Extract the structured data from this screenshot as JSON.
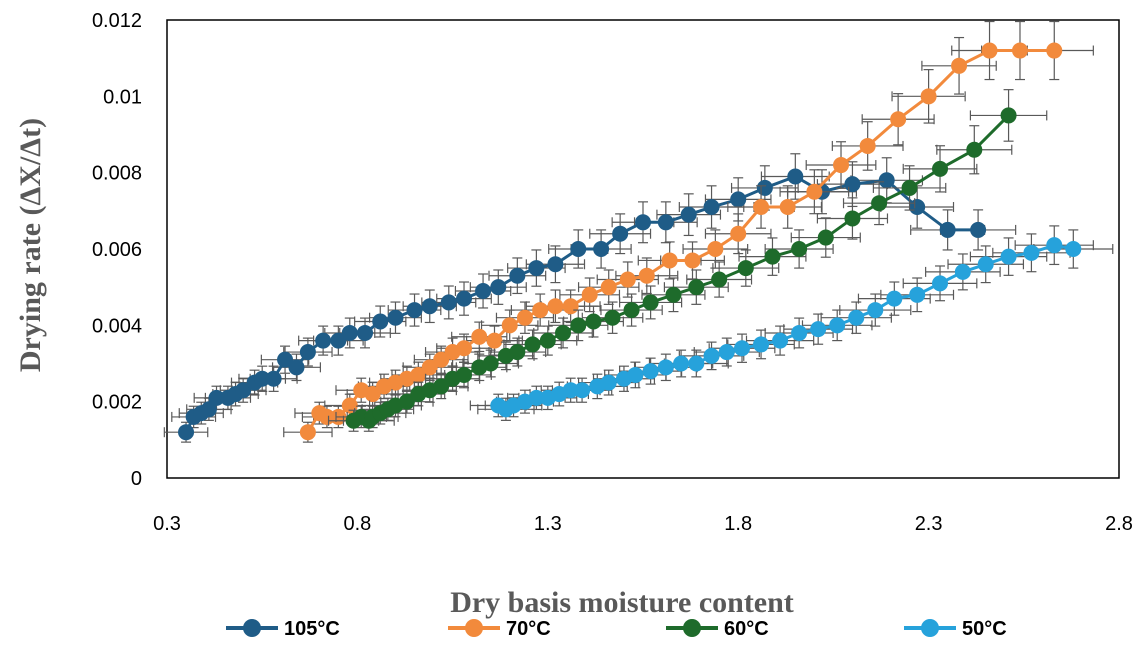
{
  "chart_data": {
    "type": "line",
    "xlabel": "Dry basis moisture content",
    "ylabel": "Drying rate (ΔX/Δt)",
    "xlim": [
      0.3,
      2.8
    ],
    "ylim": [
      0,
      0.012
    ],
    "x_ticks": [
      "0.3",
      "0.8",
      "1.3",
      "1.8",
      "2.3",
      "2.8"
    ],
    "y_ticks": [
      "0",
      "0.002",
      "0.004",
      "0.006",
      "0.008",
      "0.01",
      "0.012"
    ],
    "grid": false,
    "legend_position": "bottom",
    "error_bars": true,
    "series": [
      {
        "name": "105°C",
        "color": "#1f5c87",
        "x": [
          0.35,
          0.37,
          0.39,
          0.41,
          0.43,
          0.46,
          0.48,
          0.5,
          0.53,
          0.55,
          0.58,
          0.61,
          0.64,
          0.67,
          0.71,
          0.75,
          0.78,
          0.82,
          0.86,
          0.9,
          0.95,
          0.99,
          1.04,
          1.08,
          1.13,
          1.17,
          1.22,
          1.27,
          1.32,
          1.38,
          1.44,
          1.49,
          1.55,
          1.61,
          1.67,
          1.73,
          1.8,
          1.87,
          1.95,
          2.02,
          2.1,
          2.19,
          2.27,
          2.35,
          2.43
        ],
        "y": [
          0.0012,
          0.0016,
          0.0017,
          0.0018,
          0.0021,
          0.0021,
          0.0022,
          0.0023,
          0.0025,
          0.0026,
          0.0026,
          0.0031,
          0.0029,
          0.0033,
          0.0036,
          0.0036,
          0.0038,
          0.0038,
          0.0041,
          0.0042,
          0.0044,
          0.0045,
          0.0046,
          0.0047,
          0.0049,
          0.005,
          0.0053,
          0.0055,
          0.0056,
          0.006,
          0.006,
          0.0064,
          0.0067,
          0.0067,
          0.0069,
          0.0071,
          0.0073,
          0.0076,
          0.0079,
          0.0075,
          0.0077,
          0.0078,
          0.0071,
          0.0065,
          0.0065
        ]
      },
      {
        "name": "70°C",
        "color": "#f28a3c",
        "x": [
          0.67,
          0.7,
          0.72,
          0.75,
          0.78,
          0.81,
          0.84,
          0.87,
          0.9,
          0.93,
          0.96,
          0.99,
          1.02,
          1.05,
          1.08,
          1.12,
          1.16,
          1.2,
          1.24,
          1.28,
          1.32,
          1.36,
          1.41,
          1.46,
          1.51,
          1.56,
          1.62,
          1.68,
          1.74,
          1.8,
          1.86,
          1.93,
          2.0,
          2.07,
          2.14,
          2.22,
          2.3,
          2.38,
          2.46,
          2.54,
          2.63
        ],
        "y": [
          0.0012,
          0.0017,
          0.0016,
          0.0016,
          0.0019,
          0.0023,
          0.0022,
          0.0024,
          0.0025,
          0.0026,
          0.0027,
          0.0029,
          0.0031,
          0.0033,
          0.0034,
          0.0037,
          0.0036,
          0.004,
          0.0042,
          0.0044,
          0.0045,
          0.0045,
          0.0048,
          0.005,
          0.0052,
          0.0053,
          0.0057,
          0.0057,
          0.006,
          0.0064,
          0.0071,
          0.0071,
          0.0075,
          0.0082,
          0.0087,
          0.0094,
          0.01,
          0.0108,
          0.0112,
          0.0112,
          0.0112
        ]
      },
      {
        "name": "60°C",
        "color": "#1e6b2b",
        "x": [
          0.79,
          0.81,
          0.83,
          0.84,
          0.86,
          0.88,
          0.9,
          0.93,
          0.96,
          0.99,
          1.02,
          1.05,
          1.08,
          1.12,
          1.15,
          1.19,
          1.22,
          1.26,
          1.3,
          1.34,
          1.38,
          1.42,
          1.47,
          1.52,
          1.57,
          1.63,
          1.69,
          1.75,
          1.82,
          1.89,
          1.96,
          2.03,
          2.1,
          2.17,
          2.25,
          2.33,
          2.42,
          2.51
        ],
        "y": [
          0.0015,
          0.0016,
          0.0015,
          0.0016,
          0.0017,
          0.0018,
          0.0019,
          0.002,
          0.0022,
          0.0023,
          0.0024,
          0.0026,
          0.0027,
          0.0029,
          0.003,
          0.0032,
          0.0033,
          0.0035,
          0.0036,
          0.0038,
          0.004,
          0.0041,
          0.0042,
          0.0044,
          0.0046,
          0.0048,
          0.005,
          0.0052,
          0.0055,
          0.0058,
          0.006,
          0.0063,
          0.0068,
          0.0072,
          0.0076,
          0.0081,
          0.0086,
          0.0095
        ]
      },
      {
        "name": "50°C",
        "color": "#26a2db",
        "x": [
          1.17,
          1.19,
          1.21,
          1.24,
          1.27,
          1.3,
          1.33,
          1.36,
          1.39,
          1.43,
          1.46,
          1.5,
          1.53,
          1.57,
          1.61,
          1.65,
          1.69,
          1.73,
          1.77,
          1.81,
          1.86,
          1.91,
          1.96,
          2.01,
          2.06,
          2.11,
          2.16,
          2.21,
          2.27,
          2.33,
          2.39,
          2.45,
          2.51,
          2.57,
          2.63,
          2.68
        ],
        "y": [
          0.0019,
          0.0018,
          0.0019,
          0.002,
          0.0021,
          0.0021,
          0.0022,
          0.0023,
          0.0023,
          0.0024,
          0.0025,
          0.0026,
          0.0027,
          0.0028,
          0.0029,
          0.003,
          0.003,
          0.0032,
          0.0033,
          0.0034,
          0.0035,
          0.0036,
          0.0038,
          0.0039,
          0.004,
          0.0042,
          0.0044,
          0.0047,
          0.0048,
          0.0051,
          0.0054,
          0.0056,
          0.0058,
          0.0059,
          0.0061,
          0.006
        ]
      }
    ]
  }
}
